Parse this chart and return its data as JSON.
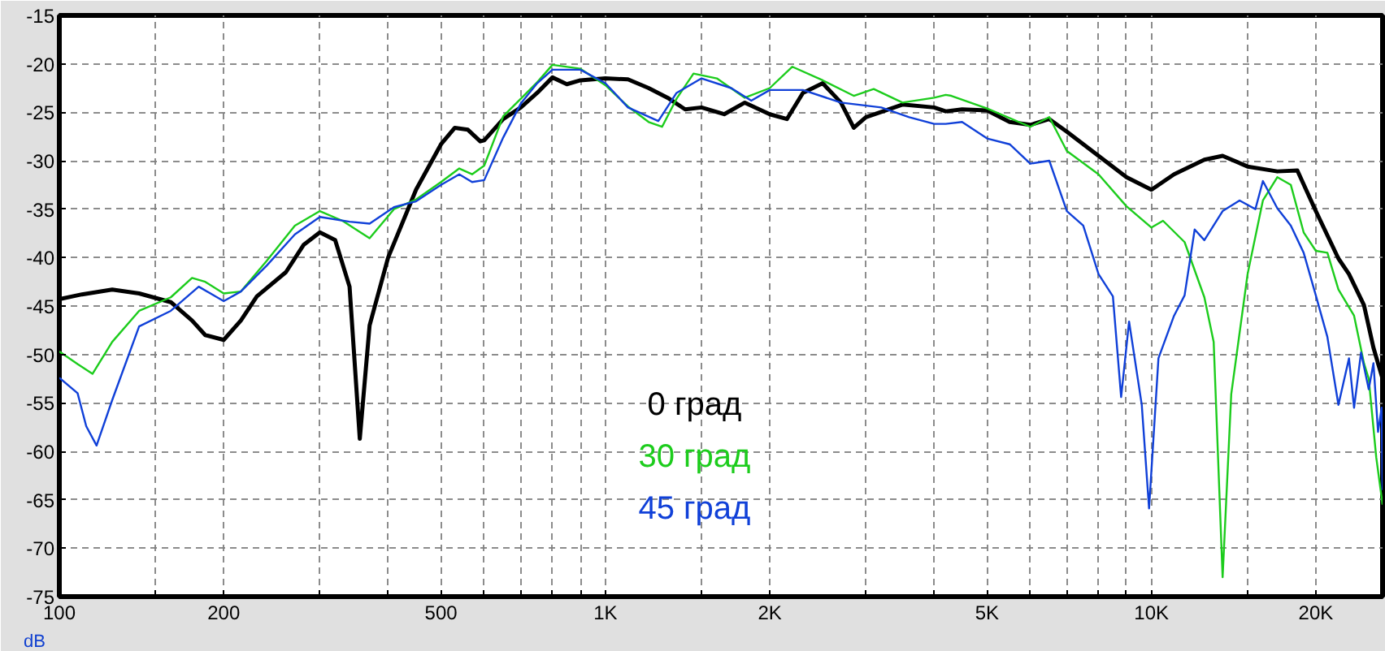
{
  "chart_data": {
    "type": "line",
    "log": "x",
    "grid": true,
    "legend": "bottom",
    "line_style": "solid",
    "marker": "none",
    "ylabel": "dB",
    "xlim": [
      100,
      26500
    ],
    "ylim": [
      -75,
      -15
    ],
    "xticks": [
      100,
      {
        "value": 150,
        "label": null
      },
      {
        "value": 200,
        "label": "200"
      },
      {
        "value": 300,
        "label": null
      },
      {
        "value": 400,
        "label": null
      },
      500,
      {
        "value": 600,
        "label": null
      },
      {
        "value": 700,
        "label": null
      },
      {
        "value": 800,
        "label": null
      },
      {
        "value": 900,
        "label": null
      },
      {
        "value": 1000,
        "label": "1K"
      },
      {
        "value": 1500,
        "label": null
      },
      {
        "value": 2000,
        "label": "2K"
      },
      {
        "value": 3000,
        "label": null
      },
      {
        "value": 4000,
        "label": null
      },
      {
        "value": 5000,
        "label": "5K"
      },
      {
        "value": 6000,
        "label": null
      },
      {
        "value": 7000,
        "label": null
      },
      {
        "value": 8000,
        "label": null
      },
      {
        "value": 9000,
        "label": null
      },
      {
        "value": 10000,
        "label": "10K"
      },
      {
        "value": 15000,
        "label": null
      },
      {
        "value": 20000,
        "label": "20K"
      }
    ],
    "yticks": [
      -15,
      -20,
      -25,
      -30,
      -35,
      -40,
      -45,
      -50,
      -55,
      -60,
      -65,
      -70,
      -75
    ],
    "series": [
      {
        "name": "0 град",
        "color": "#000000",
        "x": [
          100,
          110,
          125,
          140,
          160,
          175,
          185,
          200,
          215,
          230,
          260,
          280,
          300,
          320,
          340,
          355,
          370,
          400,
          450,
          500,
          530,
          560,
          590,
          600,
          650,
          700,
          750,
          800,
          850,
          900,
          1000,
          1100,
          1200,
          1300,
          1400,
          1500,
          1650,
          1800,
          2000,
          2150,
          2300,
          2500,
          2700,
          2850,
          3000,
          3500,
          4000,
          4200,
          4500,
          5000,
          5500,
          6000,
          6500,
          7000,
          8000,
          9000,
          10000,
          11000,
          12500,
          13500,
          15000,
          17000,
          18500,
          20000,
          22000,
          23000,
          24500,
          25500,
          26500
        ],
        "values": [
          -44.3,
          -43.8,
          -43.3,
          -43.7,
          -44.6,
          -46.5,
          -48.0,
          -48.5,
          -46.5,
          -44,
          -41.5,
          -38.7,
          -37.4,
          -38.2,
          -43,
          -58.7,
          -47,
          -40,
          -33,
          -28.3,
          -26.6,
          -26.8,
          -28.0,
          -27.9,
          -25.7,
          -24.5,
          -23,
          -21.4,
          -22.1,
          -21.7,
          -21.5,
          -21.6,
          -22.5,
          -23.5,
          -24.7,
          -24.5,
          -25.2,
          -24,
          -25.2,
          -25.7,
          -23,
          -22,
          -24,
          -26.6,
          -25.5,
          -24.2,
          -24.5,
          -24.9,
          -24.7,
          -24.8,
          -26,
          -26.3,
          -25.7,
          -27,
          -29.5,
          -31.7,
          -33,
          -31.4,
          -29.9,
          -29.5,
          -30.6,
          -31.1,
          -31,
          -35.2,
          -40.1,
          -41.7,
          -44.9,
          -49.3,
          -52.5
        ]
      },
      {
        "name": "30 град",
        "color": "#1ccc1c",
        "x": [
          100,
          108,
          115,
          125,
          140,
          160,
          175,
          185,
          200,
          215,
          240,
          270,
          300,
          330,
          370,
          410,
          450,
          500,
          540,
          570,
          600,
          650,
          700,
          750,
          800,
          900,
          1000,
          1100,
          1200,
          1270,
          1350,
          1450,
          1600,
          1800,
          2000,
          2200,
          2500,
          2850,
          3100,
          3500,
          4000,
          4200,
          4300,
          5000,
          6000,
          6500,
          7000,
          8000,
          9000,
          10000,
          10500,
          11500,
          12500,
          13000,
          13500,
          14000,
          15000,
          16000,
          17000,
          18000,
          19000,
          20000,
          21000,
          22000,
          23500,
          24500,
          25000,
          25800,
          26500
        ],
        "values": [
          -49.7,
          -51,
          -52,
          -48.7,
          -45.5,
          -44.1,
          -42.1,
          -42.5,
          -43.7,
          -43.5,
          -40.3,
          -36.7,
          -35.2,
          -36.2,
          -38,
          -35,
          -34,
          -32.2,
          -30.8,
          -31.4,
          -30.5,
          -25.4,
          -23.6,
          -21.9,
          -20.1,
          -20.5,
          -22.2,
          -24.4,
          -26,
          -26.5,
          -23.6,
          -21,
          -21.5,
          -23.5,
          -22.5,
          -20.3,
          -21.7,
          -23.3,
          -22.6,
          -24,
          -23.5,
          -23.2,
          -23.3,
          -24.6,
          -26.5,
          -25.5,
          -29,
          -31.4,
          -34.7,
          -36.9,
          -36.2,
          -38.4,
          -44.1,
          -48.7,
          -73,
          -54.1,
          -41.7,
          -34.1,
          -31.7,
          -32.5,
          -37.4,
          -39.3,
          -39.5,
          -43.3,
          -46,
          -50.9,
          -52.5,
          -60.6,
          -65.5
        ]
      },
      {
        "name": "45 град",
        "color": "#1040d8",
        "x": [
          100,
          108,
          112,
          117,
          125,
          140,
          160,
          180,
          200,
          215,
          240,
          270,
          300,
          340,
          370,
          410,
          450,
          500,
          540,
          570,
          600,
          650,
          700,
          750,
          800,
          900,
          1000,
          1100,
          1250,
          1350,
          1500,
          1700,
          1850,
          2000,
          2300,
          2700,
          3200,
          3600,
          4000,
          4200,
          4500,
          5000,
          5500,
          6000,
          6500,
          7000,
          7500,
          8000,
          8500,
          8800,
          9100,
          9600,
          9900,
          10300,
          11000,
          11500,
          12000,
          12500,
          13500,
          14500,
          15500,
          16000,
          17000,
          18000,
          19000,
          20000,
          21000,
          22000,
          23000,
          23500,
          24200,
          25000,
          25500,
          26000,
          26400,
          26500
        ],
        "values": [
          -52.4,
          -54,
          -57.4,
          -59.4,
          -54.7,
          -47.1,
          -45.5,
          -43,
          -44.5,
          -43.5,
          -40.8,
          -37.6,
          -35.8,
          -36.3,
          -36.5,
          -34.8,
          -34.2,
          -32.5,
          -31.4,
          -32.2,
          -32,
          -27.6,
          -24.1,
          -22,
          -20.6,
          -20.6,
          -22,
          -24.5,
          -25.9,
          -23,
          -21.5,
          -22.5,
          -23.8,
          -22.7,
          -22.7,
          -24,
          -24.5,
          -25.5,
          -26.2,
          -26.2,
          -26,
          -27.7,
          -28.3,
          -30.3,
          -30,
          -35.2,
          -36.7,
          -41.7,
          -44,
          -54.4,
          -46.6,
          -55.2,
          -65.9,
          -50.4,
          -46,
          -43.9,
          -37.1,
          -38.2,
          -35.2,
          -34.1,
          -35,
          -32.1,
          -34.9,
          -36.7,
          -39.5,
          -43.9,
          -48.2,
          -55.2,
          -50.4,
          -55.5,
          -49.8,
          -53.6,
          -50.9,
          -58,
          -55.5,
          -64
        ]
      }
    ]
  }
}
